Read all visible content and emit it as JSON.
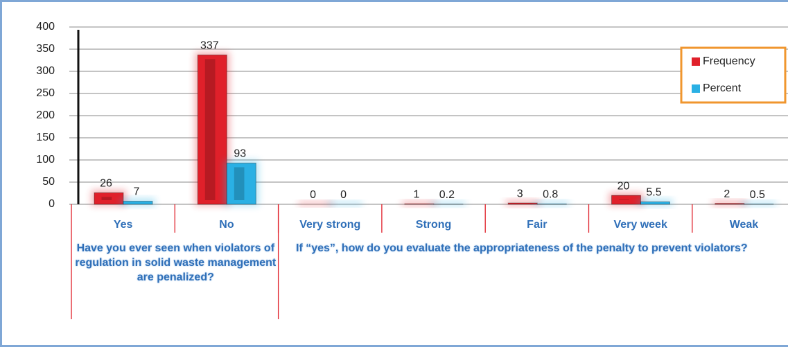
{
  "chart_data": {
    "type": "bar",
    "category_groups": [
      {
        "name": "Have you ever seen when violators of regulation in solid waste management are penalized?",
        "categories": [
          "Yes",
          "No"
        ]
      },
      {
        "name": "If “yes”, how do you evaluate the appropriateness of the penalty to prevent violators?",
        "categories": [
          "Very strong",
          "Strong",
          "Fair",
          "Very week",
          "Weak"
        ]
      }
    ],
    "series": [
      {
        "name": "Frequency",
        "color": "#e0202a",
        "values": [
          26,
          337,
          0,
          1,
          3,
          20,
          2
        ]
      },
      {
        "name": "Percent",
        "color": "#2ab0e4",
        "values": [
          7,
          93,
          0,
          0.2,
          0.8,
          5.5,
          0.5
        ]
      }
    ],
    "ylim": [
      0,
      400
    ],
    "yticks": [
      0,
      50,
      100,
      150,
      200,
      250,
      300,
      350,
      400
    ],
    "grid": true,
    "legend": "upper right"
  }
}
